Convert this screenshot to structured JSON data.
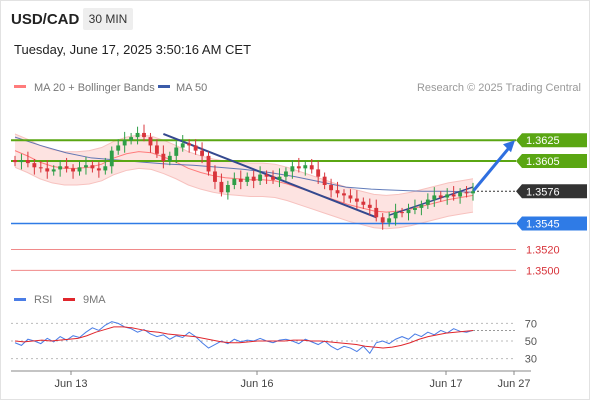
{
  "header": {
    "symbol": "USD/CAD",
    "timeframe": "30 MIN",
    "timestamp": "Tuesday, June 17, 2025 3:50:16 AM CET"
  },
  "legend": {
    "ma20_label": "MA 20 + Bollinger Bands",
    "ma20_color": "#ff7b7b",
    "ma50_label": "MA 50",
    "ma50_color": "#3b5ba9",
    "credit": "Research © 2025 Trading Central"
  },
  "rsi_legend": {
    "rsi_label": "RSI",
    "rsi_color": "#4a7de6",
    "ma9_label": "9MA",
    "ma9_color": "#e0262c"
  },
  "colors": {
    "up_candle": "#2e9e47",
    "down_candle": "#d8343b",
    "resistance": "#5aa613",
    "support": "#2f7be6",
    "secondary_support": "#f08a8a",
    "current_price": "#333333",
    "trendline": "#34498f",
    "projection_arrow": "#2f6fe0",
    "bollinger_fill": "#fde0de"
  },
  "chart_data": [
    {
      "type": "candlestick",
      "title": "USD/CAD",
      "timeframe": "30 MIN",
      "x_labels": [
        "Jun 13",
        "Jun 16",
        "Jun 17",
        "Jun 27"
      ],
      "ylim": [
        1.3485,
        1.3655
      ],
      "close": [
        1.3604,
        1.3606,
        1.3603,
        1.3599,
        1.3598,
        1.3595,
        1.3597,
        1.36,
        1.3598,
        1.3595,
        1.3599,
        1.3601,
        1.3598,
        1.3596,
        1.36,
        1.3615,
        1.362,
        1.3625,
        1.3628,
        1.3632,
        1.3628,
        1.362,
        1.3612,
        1.3605,
        1.361,
        1.3618,
        1.3622,
        1.362,
        1.3615,
        1.361,
        1.3595,
        1.3585,
        1.3575,
        1.3582,
        1.3588,
        1.3585,
        1.359,
        1.3586,
        1.3592,
        1.359,
        1.3587,
        1.359,
        1.3595,
        1.36,
        1.3598,
        1.3601,
        1.3597,
        1.359,
        1.3582,
        1.3577,
        1.3574,
        1.3572,
        1.3569,
        1.3566,
        1.3563,
        1.356,
        1.3551,
        1.3546,
        1.355,
        1.3556,
        1.3555,
        1.3558,
        1.356,
        1.3563,
        1.3568,
        1.3572,
        1.357,
        1.3573,
        1.3571,
        1.3575,
        1.3574,
        1.3576
      ],
      "support_levels": [
        1.3545,
        1.352,
        1.35
      ],
      "resistance_levels": [
        1.3625,
        1.3605
      ],
      "current_price": 1.3576,
      "price_labels": [
        "1.3625",
        "1.3605",
        "1.3576",
        "1.3545",
        "1.3520",
        "1.3500"
      ],
      "series": [
        {
          "name": "MA 20 + Bollinger Bands",
          "values": [
            1.3615,
            1.361,
            1.3604,
            1.36,
            1.3598,
            1.3598,
            1.3599,
            1.3602,
            1.3608,
            1.3612,
            1.3614,
            1.3613,
            1.3609,
            1.3604,
            1.3598,
            1.3594,
            1.3591,
            1.3589,
            1.3588,
            1.3587,
            1.3587,
            1.3586,
            1.3583,
            1.3579,
            1.3575,
            1.3571,
            1.3567,
            1.3563,
            1.356,
            1.3557,
            1.3556,
            1.3557,
            1.3559,
            1.3562,
            1.3565,
            1.3568,
            1.357,
            1.3572
          ]
        },
        {
          "name": "MA 50",
          "values": [
            1.3628,
            1.362,
            1.3613,
            1.3608,
            1.3606,
            1.3604,
            1.3602,
            1.3601,
            1.3599,
            1.3597,
            1.3594,
            1.359,
            1.3585,
            1.358,
            1.3578,
            1.3577,
            1.3576,
            1.3576,
            1.3575
          ]
        }
      ]
    },
    {
      "type": "line",
      "title": "RSI",
      "ylim": [
        25,
        75
      ],
      "tick_labels": [
        "70",
        "50",
        "30"
      ],
      "series": [
        {
          "name": "RSI",
          "values": [
            48,
            45,
            52,
            50,
            47,
            53,
            49,
            55,
            51,
            56,
            54,
            60,
            65,
            62,
            68,
            72,
            70,
            66,
            64,
            60,
            63,
            58,
            55,
            57,
            52,
            56,
            54,
            60,
            55,
            48,
            42,
            46,
            50,
            47,
            52,
            49,
            51,
            50,
            53,
            50,
            48,
            51,
            52,
            50,
            47,
            52,
            49,
            46,
            50,
            44,
            40,
            44,
            42,
            38,
            44,
            36,
            48,
            50,
            47,
            52,
            55,
            52,
            58,
            55,
            60,
            57,
            62,
            59,
            64,
            61,
            60,
            62
          ]
        },
        {
          "name": "9MA",
          "values": [
            50,
            49,
            50,
            51,
            50,
            51,
            52,
            53,
            56,
            60,
            63,
            66,
            66,
            65,
            63,
            61,
            60,
            58,
            57,
            56,
            55,
            53,
            51,
            49,
            48,
            48,
            49,
            50,
            50,
            50,
            50,
            51,
            51,
            50,
            50,
            49,
            48,
            47,
            46,
            44,
            43,
            42,
            43,
            45,
            48,
            52,
            55,
            57,
            59,
            60,
            61,
            62
          ]
        }
      ]
    }
  ]
}
